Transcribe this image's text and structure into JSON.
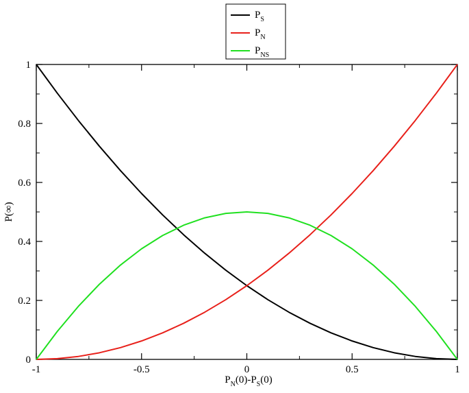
{
  "chart_data": {
    "type": "line",
    "title": "",
    "xlabel": {
      "parts": [
        {
          "text": "P",
          "sub": "N"
        },
        {
          "text": "(0)-P",
          "sub": "S"
        },
        {
          "text": "(0)",
          "sub": ""
        }
      ]
    },
    "ylabel": "P(∞)",
    "xlim": [
      -1,
      1
    ],
    "ylim": [
      0,
      1
    ],
    "x_ticks": [
      -1,
      -0.5,
      0,
      0.5,
      1
    ],
    "x_tick_labels": [
      "-1",
      "-0.5",
      "0",
      "0.5",
      "1"
    ],
    "y_ticks": [
      0,
      0.2,
      0.4,
      0.6,
      0.8,
      1
    ],
    "y_tick_labels": [
      "0",
      "0.2",
      "0.4",
      "0.6",
      "0.8",
      "1"
    ],
    "grid": false,
    "legend_position": "top-center",
    "x": [
      -1,
      -0.9,
      -0.8,
      -0.7,
      -0.6,
      -0.5,
      -0.4,
      -0.3,
      -0.2,
      -0.1,
      0,
      0.1,
      0.2,
      0.3,
      0.4,
      0.5,
      0.6,
      0.7,
      0.8,
      0.9,
      1
    ],
    "series": [
      {
        "name": "P",
        "sub": "S",
        "color": "#000000",
        "values": [
          1.0,
          0.9025,
          0.81,
          0.7225,
          0.64,
          0.5625,
          0.49,
          0.4225,
          0.36,
          0.3025,
          0.25,
          0.2025,
          0.16,
          0.1225,
          0.09,
          0.0625,
          0.04,
          0.0225,
          0.01,
          0.0025,
          0.0
        ]
      },
      {
        "name": "P",
        "sub": "N",
        "color": "#e8201a",
        "values": [
          0.0,
          0.0025,
          0.01,
          0.0225,
          0.04,
          0.0625,
          0.09,
          0.1225,
          0.16,
          0.2025,
          0.25,
          0.3025,
          0.36,
          0.4225,
          0.49,
          0.5625,
          0.64,
          0.7225,
          0.81,
          0.9025,
          1.0
        ]
      },
      {
        "name": "P",
        "sub": "NS",
        "color": "#1fe01f",
        "values": [
          0.0,
          0.095,
          0.18,
          0.255,
          0.32,
          0.375,
          0.42,
          0.455,
          0.48,
          0.495,
          0.5,
          0.495,
          0.48,
          0.455,
          0.42,
          0.375,
          0.32,
          0.255,
          0.18,
          0.095,
          0.0
        ]
      }
    ]
  }
}
